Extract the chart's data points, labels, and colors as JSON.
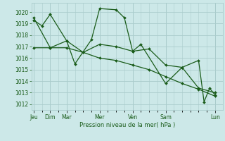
{
  "background_color": "#cce8e8",
  "grid_color": "#aacccc",
  "line_color": "#1a5c1a",
  "marker_color": "#1a5c1a",
  "xlabel": "Pression niveau de la mer( hPa )",
  "ylim": [
    1011.5,
    1020.8
  ],
  "yticks": [
    1012,
    1013,
    1014,
    1015,
    1016,
    1017,
    1018,
    1019,
    1020
  ],
  "day_tick_positions": [
    0,
    1.5,
    3,
    6,
    9,
    12,
    16.5
  ],
  "day_tick_labels": [
    "Jeu",
    "Dim",
    "Mar",
    "Mer",
    "Ven",
    "Sam",
    "Lun"
  ],
  "xlim": [
    -0.2,
    17.2
  ],
  "series": [
    {
      "x": [
        0,
        0.75,
        1.5,
        3,
        3.75,
        5.25,
        6,
        7.5,
        8.25,
        9,
        9.75,
        12,
        13.5,
        15,
        15.5,
        16,
        16.5
      ],
      "y": [
        1019.3,
        1018.8,
        1019.8,
        1017.5,
        1015.5,
        1017.6,
        1020.3,
        1020.2,
        1019.5,
        1016.6,
        1017.2,
        1013.8,
        1015.2,
        1015.8,
        1012.2,
        1013.4,
        1012.8
      ]
    },
    {
      "x": [
        0,
        1.5,
        3,
        4.5,
        6,
        7.5,
        9,
        10.5,
        12,
        13.5,
        15,
        16.5
      ],
      "y": [
        1019.5,
        1016.9,
        1016.9,
        1016.5,
        1017.2,
        1017.0,
        1016.6,
        1016.8,
        1015.4,
        1015.2,
        1013.4,
        1013.0
      ]
    },
    {
      "x": [
        0,
        1.5,
        3,
        4.5,
        6,
        7.5,
        9,
        10.5,
        12,
        13.5,
        15,
        16.5
      ],
      "y": [
        1016.9,
        1016.9,
        1017.5,
        1016.5,
        1016.0,
        1015.8,
        1015.4,
        1015.0,
        1014.4,
        1013.8,
        1013.3,
        1012.7
      ]
    }
  ]
}
